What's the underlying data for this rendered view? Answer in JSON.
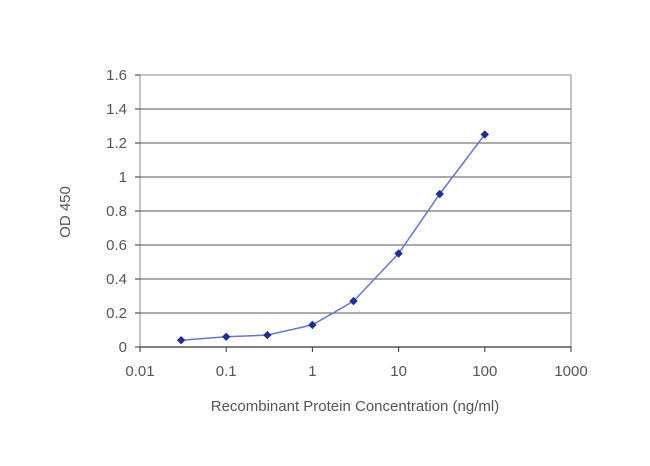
{
  "chart_data": {
    "type": "line",
    "title": "",
    "xlabel": "Recombinant Protein Concentration (ng/ml)",
    "ylabel": "OD 450",
    "x_scale": "log",
    "xlim": [
      0.01,
      1000
    ],
    "ylim": [
      0,
      1.6
    ],
    "x_ticks": [
      0.01,
      0.1,
      1,
      10,
      100,
      1000
    ],
    "x_tick_labels": [
      "0.01",
      "0.1",
      "1",
      "10",
      "100",
      "1000"
    ],
    "y_ticks": [
      0,
      0.2,
      0.4,
      0.6,
      0.8,
      1,
      1.2,
      1.4,
      1.6
    ],
    "y_tick_labels": [
      "0",
      "0.2",
      "0.4",
      "0.6",
      "0.8",
      "1",
      "1.2",
      "1.4",
      "1.6"
    ],
    "grid": "horizontal",
    "legend": "none",
    "series": [
      {
        "x": [
          0.03,
          0.1,
          0.3,
          1,
          3,
          10,
          30,
          100
        ],
        "y": [
          0.04,
          0.06,
          0.07,
          0.13,
          0.27,
          0.55,
          0.9,
          1.25
        ]
      }
    ],
    "colors": {
      "line": "#6677cc",
      "marker": "#1f2f8f",
      "grid": "#555555",
      "plot_border": "#888888"
    }
  }
}
